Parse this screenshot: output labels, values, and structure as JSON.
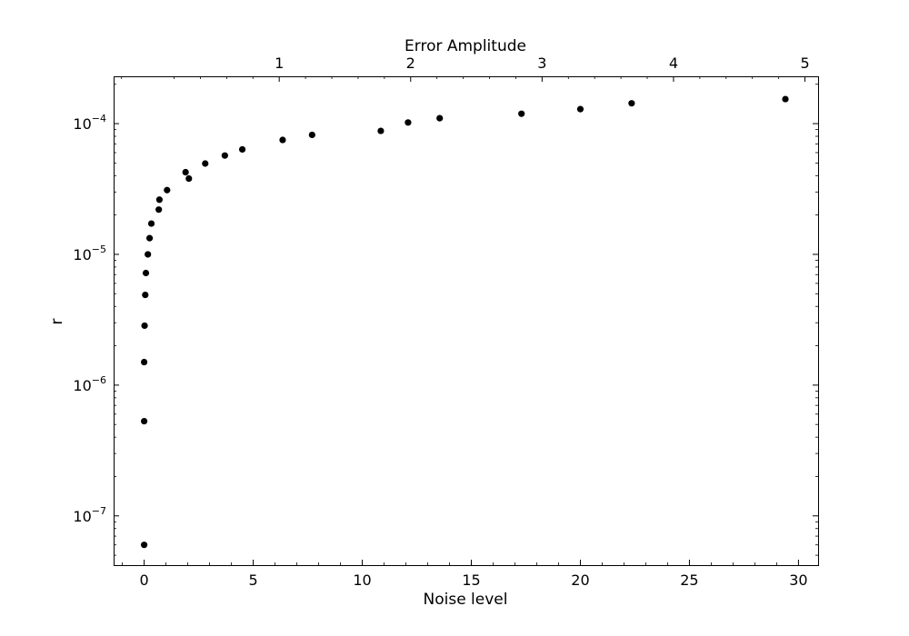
{
  "chart_data": {
    "type": "scatter",
    "title": "",
    "xlabel": "Noise level",
    "ylabel": "r",
    "x2label": "Error Amplitude",
    "xlim": [
      -1.4,
      30.9
    ],
    "ylim": [
      4.2e-08,
      0.00023
    ],
    "yscale": "log",
    "x2lim": [
      -0.26,
      5.1
    ],
    "grid": false,
    "legend": "none",
    "marker_color": "#000000",
    "x_ticks": [
      {
        "value": 0,
        "label": "0"
      },
      {
        "value": 5,
        "label": "5"
      },
      {
        "value": 10,
        "label": "10"
      },
      {
        "value": 15,
        "label": "15"
      },
      {
        "value": 20,
        "label": "20"
      },
      {
        "value": 25,
        "label": "25"
      },
      {
        "value": 30,
        "label": "30"
      }
    ],
    "x2_ticks": [
      {
        "value": 1,
        "label": "1"
      },
      {
        "value": 2,
        "label": "2"
      },
      {
        "value": 3,
        "label": "3"
      },
      {
        "value": 4,
        "label": "4"
      },
      {
        "value": 5,
        "label": "5"
      }
    ],
    "y_ticks": [
      {
        "value": 1e-07,
        "base": "10",
        "exp": "−7"
      },
      {
        "value": 1e-06,
        "base": "10",
        "exp": "−6"
      },
      {
        "value": 1e-05,
        "base": "10",
        "exp": "−5"
      },
      {
        "value": 0.0001,
        "base": "10",
        "exp": "−4"
      }
    ],
    "points": [
      {
        "x": 0.0,
        "y": 6e-08
      },
      {
        "x": 0.0,
        "y": 5.3e-07
      },
      {
        "x": 0.0,
        "y": 1.5e-06
      },
      {
        "x": 0.02,
        "y": 2.85e-06
      },
      {
        "x": 0.05,
        "y": 4.9e-06
      },
      {
        "x": 0.08,
        "y": 7.2e-06
      },
      {
        "x": 0.17,
        "y": 1e-05
      },
      {
        "x": 0.25,
        "y": 1.33e-05
      },
      {
        "x": 0.33,
        "y": 1.72e-05
      },
      {
        "x": 0.67,
        "y": 2.2e-05
      },
      {
        "x": 0.7,
        "y": 2.62e-05
      },
      {
        "x": 1.05,
        "y": 3.1e-05
      },
      {
        "x": 1.9,
        "y": 4.25e-05
      },
      {
        "x": 2.05,
        "y": 3.8e-05
      },
      {
        "x": 2.8,
        "y": 4.95e-05
      },
      {
        "x": 3.7,
        "y": 5.7e-05
      },
      {
        "x": 4.5,
        "y": 6.35e-05
      },
      {
        "x": 6.35,
        "y": 7.5e-05
      },
      {
        "x": 7.7,
        "y": 8.2e-05
      },
      {
        "x": 10.85,
        "y": 8.8e-05
      },
      {
        "x": 12.1,
        "y": 0.000102
      },
      {
        "x": 13.55,
        "y": 0.00011
      },
      {
        "x": 17.3,
        "y": 0.000119
      },
      {
        "x": 20.0,
        "y": 0.000129
      },
      {
        "x": 22.35,
        "y": 0.000143
      },
      {
        "x": 29.4,
        "y": 0.000154
      }
    ]
  }
}
